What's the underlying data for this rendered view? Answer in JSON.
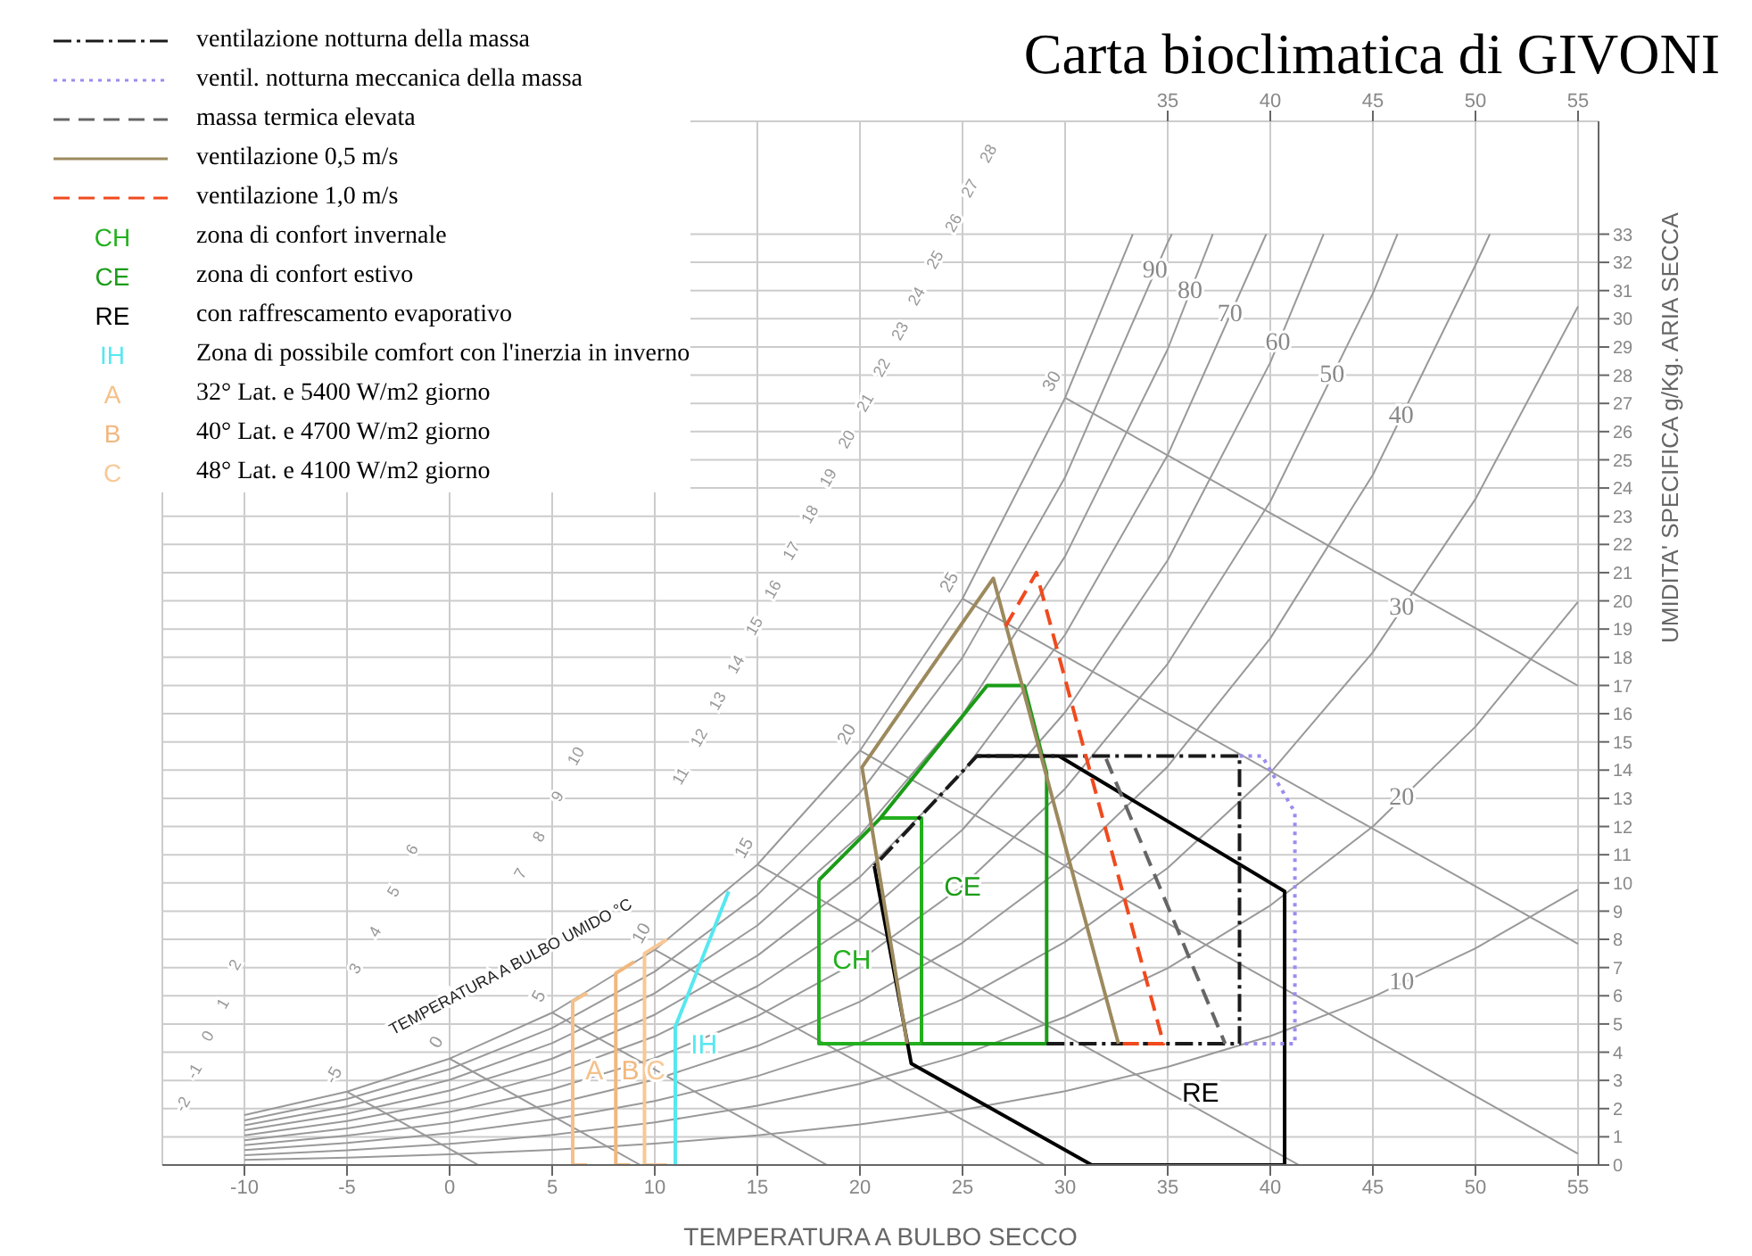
{
  "chart_data": {
    "type": "line",
    "title": "Carta bioclimatica di GIVONI",
    "xlabel": "TEMPERATURA A BULBO SECCO",
    "ylabel": "UMIDITA' SPECIFICA g/Kg. ARIA SECCA",
    "xlim": [
      -14,
      56
    ],
    "xticks": [
      -10,
      -5,
      0,
      5,
      10,
      15,
      20,
      25,
      30,
      35,
      40,
      45,
      50,
      55
    ],
    "ylim": [
      0,
      37
    ],
    "yticks": [
      0,
      1,
      2,
      3,
      4,
      5,
      6,
      7,
      8,
      9,
      10,
      11,
      12,
      13,
      14,
      15,
      16,
      17,
      18,
      19,
      20,
      21,
      22,
      23,
      24,
      25,
      26,
      27,
      28,
      29,
      30,
      31,
      32,
      33
    ],
    "x2lim": [
      -14,
      56
    ],
    "x2ticks": [
      35,
      40,
      45,
      50,
      55
    ],
    "grid": true,
    "legend": "top left",
    "series": [
      {
        "name": "ventilazione notturna della massa",
        "color": "#1a1a1a",
        "line_style": "dashdot",
        "x": [
          29.1,
          38.5,
          38.5,
          25.7,
          20.7
        ],
        "values": [
          4.3,
          4.3,
          14.5,
          14.5,
          10.6
        ]
      },
      {
        "name": "ventil. notturna meccanica della massa",
        "color": "#9b8cf0",
        "line_style": "dotted",
        "x": [
          38.5,
          39.6,
          41.2,
          41.2,
          38.5
        ],
        "values": [
          14.5,
          14.5,
          12.5,
          4.3,
          4.3
        ]
      },
      {
        "name": "massa termica elevata",
        "color": "#666666",
        "line_style": "dashed",
        "x": [
          32,
          37.8
        ],
        "values": [
          14.4,
          4.3
        ]
      },
      {
        "name": "ventilazione 0,5 m/s",
        "color": "#9c8a5e",
        "line_style": "solid",
        "x": [
          22.3,
          20.1,
          26.5,
          32.6
        ],
        "values": [
          4.3,
          14.1,
          20.8,
          4.3
        ]
      },
      {
        "name": "ventilazione 1,0 m/s",
        "color": "#f04a1e",
        "line_style": "dashed",
        "x": [
          27.1,
          28.6,
          34.8,
          32.6
        ],
        "values": [
          19.1,
          21.0,
          4.3,
          4.3
        ]
      },
      {
        "name": "CH",
        "color": "#22b01e",
        "x": [
          21,
          23,
          23,
          18,
          18
        ],
        "values": [
          12.3,
          12.3,
          4.3,
          4.3,
          10.1
        ]
      },
      {
        "name": "CE",
        "color": "#1a9c17",
        "x": [
          18,
          21,
          26.2,
          28,
          29.1,
          29.1,
          23
        ],
        "values": [
          10.1,
          12.3,
          17,
          17,
          13.9,
          4.3,
          4.3
        ]
      },
      {
        "name": "RE",
        "color": "#000000",
        "x": [
          20.7,
          22.5,
          31.3,
          40.7,
          40.7,
          29.7,
          25.7
        ],
        "values": [
          10.6,
          3.6,
          0,
          0,
          9.7,
          14.5,
          14.5
        ]
      },
      {
        "name": "IH",
        "color": "#55e8f0",
        "x": [
          11,
          11,
          13.6
        ],
        "values": [
          0,
          4.9,
          9.7
        ]
      },
      {
        "name": "A",
        "color": "#f5c08a",
        "x": [
          6.7,
          6,
          6,
          6.7
        ],
        "values": [
          0,
          0,
          5.8,
          6.1
        ]
      },
      {
        "name": "B",
        "color": "#f2b77e",
        "x": [
          8.8,
          8.1,
          8.1,
          9.0
        ],
        "values": [
          0,
          0,
          6.8,
          7.2
        ]
      },
      {
        "name": "C",
        "color": "#f8c896",
        "x": [
          10.6,
          9.5,
          9.5,
          10.6
        ],
        "values": [
          0,
          0,
          7.5,
          8.0
        ]
      },
      {
        "color": "#999999",
        "x": [
          -10,
          -5,
          0,
          5,
          10,
          15,
          20,
          25,
          30,
          33.3
        ],
        "values": [
          1.77,
          2.6,
          3.77,
          5.4,
          7.63,
          10.65,
          14.69,
          20.08,
          27.2,
          33
        ]
      },
      {
        "name": "90",
        "color": "#999999",
        "x": [
          -10,
          -5,
          0,
          5,
          10,
          15,
          20,
          25,
          30,
          35,
          35.2
        ],
        "values": [
          1.58,
          2.34,
          3.4,
          4.86,
          6.86,
          9.57,
          13.19,
          17.99,
          24.38,
          32.7,
          33
        ]
      },
      {
        "name": "80",
        "color": "#999999",
        "x": [
          -10,
          -5,
          0,
          5,
          10,
          15,
          20,
          25,
          30,
          35,
          37.2
        ],
        "values": [
          1.41,
          2.08,
          3.02,
          4.32,
          6.09,
          8.49,
          11.7,
          15.96,
          21.58,
          28.92,
          33
        ]
      },
      {
        "name": "70",
        "color": "#999999",
        "x": [
          -10,
          -5,
          0,
          5,
          10,
          15,
          20,
          25,
          30,
          35,
          39.8
        ],
        "values": [
          1.23,
          1.82,
          2.64,
          3.77,
          5.33,
          7.42,
          10.21,
          13.92,
          18.8,
          25.17,
          33
        ]
      },
      {
        "name": "60",
        "color": "#999999",
        "x": [
          -10,
          -5,
          0,
          5,
          10,
          15,
          20,
          25,
          30,
          35,
          40,
          42.6
        ],
        "values": [
          1.05,
          1.56,
          2.26,
          3.23,
          4.56,
          6.34,
          8.73,
          11.89,
          16.05,
          21.44,
          28.45,
          33
        ]
      },
      {
        "name": "50",
        "color": "#999999",
        "x": [
          -10,
          -5,
          0,
          5,
          10,
          15,
          20,
          25,
          30,
          35,
          40,
          45,
          46.2
        ],
        "values": [
          0.88,
          1.3,
          1.88,
          2.69,
          3.79,
          5.28,
          7.26,
          9.89,
          13.34,
          17.77,
          23.52,
          30.9,
          33
        ]
      },
      {
        "name": "40",
        "color": "#999999",
        "x": [
          -10,
          -5,
          0,
          5,
          10,
          15,
          20,
          25,
          30,
          35,
          40,
          45,
          50,
          50.7
        ],
        "values": [
          0.7,
          1.04,
          1.5,
          2.15,
          3.03,
          4.22,
          5.79,
          7.88,
          10.6,
          14.13,
          18.67,
          24.47,
          31.9,
          33
        ]
      },
      {
        "name": "30",
        "color": "#999999",
        "x": [
          -10,
          -5,
          0,
          5,
          10,
          15,
          20,
          25,
          30,
          35,
          40,
          45,
          50,
          55
        ],
        "values": [
          0.53,
          0.78,
          1.13,
          1.61,
          2.27,
          3.15,
          4.33,
          5.88,
          7.91,
          10.53,
          13.9,
          18.18,
          23.61,
          30.44
        ]
      },
      {
        "name": "20",
        "color": "#999999",
        "x": [
          -10,
          -5,
          0,
          5,
          10,
          15,
          20,
          25,
          30,
          35,
          40,
          45,
          50,
          55
        ],
        "values": [
          0.35,
          0.52,
          0.75,
          1.07,
          1.51,
          2.1,
          2.88,
          3.91,
          5.25,
          6.98,
          9.2,
          12.0,
          15.54,
          19.97
        ]
      },
      {
        "name": "10",
        "color": "#999999",
        "x": [
          -10,
          -5,
          0,
          5,
          10,
          15,
          20,
          25,
          30,
          35,
          40,
          45,
          50,
          55
        ],
        "values": [
          0.18,
          0.26,
          0.38,
          0.54,
          0.76,
          1.05,
          1.44,
          1.95,
          2.62,
          3.48,
          4.57,
          5.96,
          7.68,
          9.77
        ]
      },
      {
        "name": "-5",
        "color": "#999999",
        "x": [
          -5,
          1.4
        ],
        "values": [
          2.6,
          0
        ]
      },
      {
        "name": "0",
        "color": "#999999",
        "x": [
          0,
          9.3
        ],
        "values": [
          3.77,
          0
        ]
      },
      {
        "name": "5",
        "color": "#999999",
        "x": [
          5,
          18.4
        ],
        "values": [
          5.4,
          0
        ]
      },
      {
        "name": "10",
        "color": "#999999",
        "x": [
          10,
          29
        ],
        "values": [
          7.63,
          0
        ]
      },
      {
        "name": "15",
        "color": "#999999",
        "x": [
          15,
          41.4
        ],
        "values": [
          10.65,
          0
        ]
      },
      {
        "name": "20",
        "color": "#999999",
        "x": [
          20,
          55
        ],
        "values": [
          14.69,
          0.4
        ]
      },
      {
        "name": "25",
        "color": "#999999",
        "x": [
          25,
          55
        ],
        "values": [
          20.08,
          7.84
        ]
      },
      {
        "name": "30",
        "color": "#999999",
        "x": [
          30,
          55
        ],
        "values": [
          27.2,
          16.99
        ]
      }
    ],
    "annotations": [
      "zona di confort invernale",
      "zona di confort estivo",
      "con raffrescamento evaporativo",
      "Zona di possibile comfort con l'inerzia in inverno",
      "32° Lat. e 5400 W/m2 giorno",
      "40° Lat. e 4700 W/m2 giorno",
      "48° Lat. e 4100 W/m2 giorno",
      "TEMPERATURA A BULBO UMIDO °C",
      "-2",
      "-1",
      "0",
      "1",
      "2",
      "3",
      "4",
      "5",
      "6",
      "7",
      "8",
      "9",
      "10",
      "11",
      "12",
      "13",
      "14",
      "15",
      "16",
      "17",
      "18",
      "19",
      "20",
      "21",
      "22",
      "23",
      "24",
      "25",
      "26",
      "27",
      "28"
    ]
  }
}
